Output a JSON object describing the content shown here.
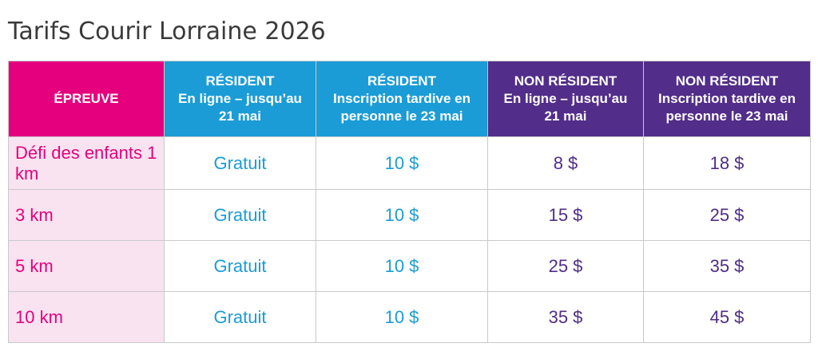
{
  "title": "Tarifs Courir Lorraine 2026",
  "colors": {
    "magenta": "#e5007d",
    "cyan": "#1b9cd6",
    "purple": "#522d8a",
    "purple_text": "#4f2d87",
    "light_pink": "#f9e3f0",
    "grid": "#c9c9c9",
    "title_text": "#3a3a3a"
  },
  "table": {
    "columns": [
      {
        "id": "epreuve",
        "lines": [
          "ÉPREUVE"
        ]
      },
      {
        "id": "resident-online",
        "lines": [
          "RÉSIDENT",
          "En ligne – jusqu’au",
          "21 mai"
        ]
      },
      {
        "id": "resident-late",
        "lines": [
          "RÉSIDENT",
          "Inscription tardive en",
          "personne le 23 mai"
        ]
      },
      {
        "id": "nonresident-online",
        "lines": [
          "NON RÉSIDENT",
          "En ligne – jusqu’au",
          "21 mai"
        ]
      },
      {
        "id": "nonresident-late",
        "lines": [
          "NON RÉSIDENT",
          "Inscription tardive en",
          "personne le 23 mai"
        ]
      }
    ],
    "rows": [
      {
        "cells": [
          "Défi des enfants 1 km",
          "Gratuit",
          "10 $",
          "8 $",
          "18 $"
        ]
      },
      {
        "cells": [
          "3 km",
          "Gratuit",
          "10 $",
          "15 $",
          "25 $"
        ]
      },
      {
        "cells": [
          "5 km",
          "Gratuit",
          "10 $",
          "25 $",
          "35 $"
        ]
      },
      {
        "cells": [
          "10 km",
          "Gratuit",
          "10 $",
          "35 $",
          "45 $"
        ]
      }
    ]
  }
}
